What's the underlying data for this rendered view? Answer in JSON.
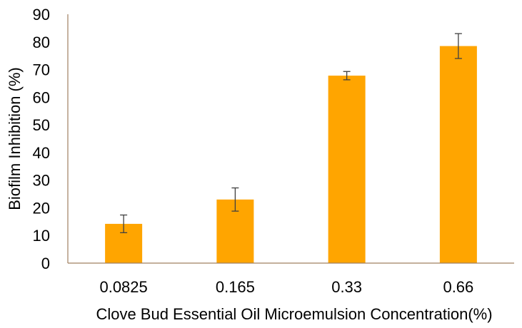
{
  "chart_data": {
    "type": "bar",
    "title": "",
    "xlabel": "Clove Bud Essential Oil Microemulsion Concentration(%)",
    "ylabel": "Biofilm Inhibition (%)",
    "categories": [
      "0.0825",
      "0.165",
      "0.33",
      "0.66"
    ],
    "values": [
      14.2,
      23.0,
      67.8,
      78.5
    ],
    "error": [
      3.2,
      4.2,
      1.5,
      4.5
    ],
    "ylim": [
      0,
      90
    ],
    "yticks": [
      0,
      10,
      20,
      30,
      40,
      50,
      60,
      70,
      80,
      90
    ],
    "yticklabels": [
      "0",
      "10",
      "20",
      "30",
      "40",
      "50",
      "60",
      "70",
      "80",
      "90"
    ],
    "grid": false,
    "legend": "none",
    "colors": {
      "bar": "#FFA500",
      "error_bar": "#404040",
      "axis": "#A08060"
    }
  }
}
